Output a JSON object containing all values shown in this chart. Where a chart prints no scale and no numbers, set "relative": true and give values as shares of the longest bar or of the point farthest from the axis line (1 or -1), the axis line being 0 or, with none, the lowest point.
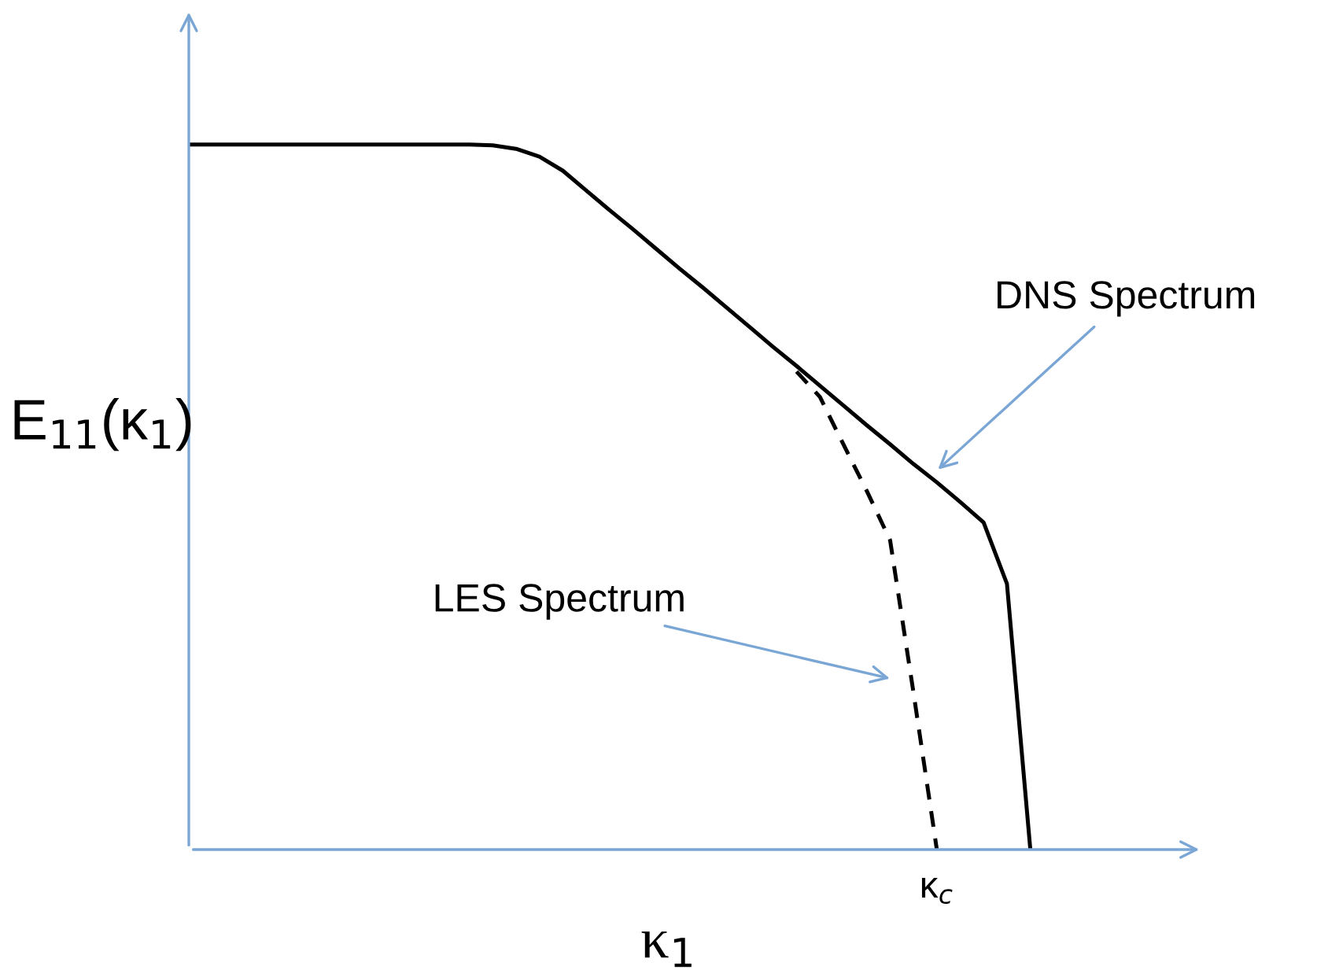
{
  "chart_data": {
    "type": "line",
    "relative": true,
    "xlabel": "κ$_{1}$",
    "ylabel": "E$_{11}$(κ$_{1}$)",
    "grid": false,
    "legend": false,
    "marker": "none",
    "categories": [
      null,
      null,
      null,
      null,
      null,
      null,
      null,
      null,
      null,
      null,
      null,
      null,
      null,
      null,
      null,
      null,
      null,
      null,
      null,
      null,
      null,
      null,
      null,
      null,
      null,
      null,
      null,
      null,
      null,
      null,
      null,
      null,
      null,
      null,
      null,
      null,
      null
    ],
    "series": [
      {
        "color": "#000000",
        "line_style": "solid",
        "values": [
          1,
          1,
          1,
          1,
          1,
          1,
          1,
          1,
          1,
          1,
          1,
          1,
          1,
          0.999,
          0.994,
          0.983,
          0.963,
          0.935,
          0.907,
          0.88,
          0.852,
          0.824,
          0.797,
          0.769,
          0.741,
          0.713,
          0.686,
          0.658,
          0.63,
          0.602,
          0.575,
          0.547,
          0.521,
          0.493,
          0.464,
          0.377,
          0
        ]
      },
      {
        "color": "#000000",
        "line_style": "dashed",
        "values": [
          null,
          null,
          null,
          null,
          null,
          null,
          null,
          null,
          null,
          null,
          null,
          null,
          null,
          null,
          null,
          null,
          null,
          null,
          null,
          null,
          null,
          null,
          null,
          null,
          null,
          null,
          0.678,
          0.642,
          0.575,
          0.509,
          0.439,
          0.223,
          0,
          null,
          null,
          null,
          null
        ]
      }
    ],
    "annotations": [
      "DNS Spectrum",
      "LES Spectrum",
      "κ$_{c}$"
    ]
  }
}
